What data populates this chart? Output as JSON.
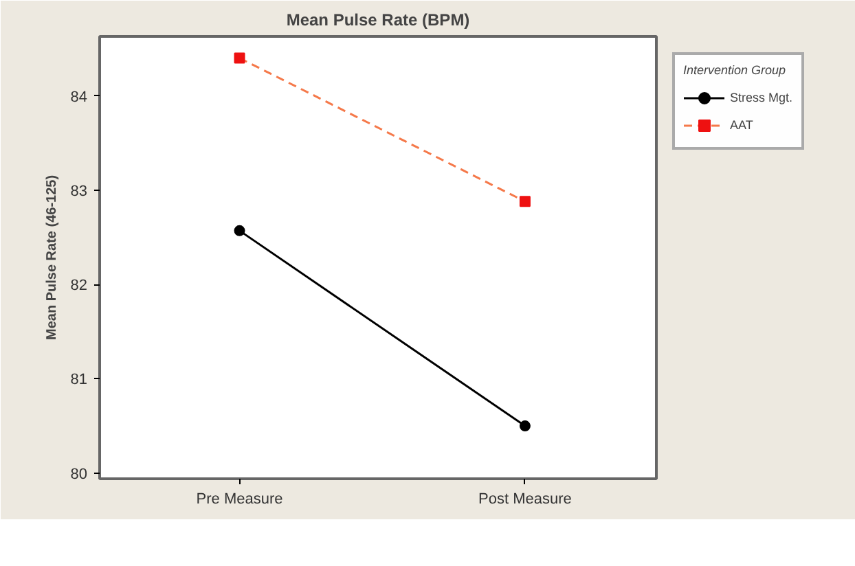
{
  "chart_data": {
    "type": "line",
    "title": "Mean Pulse Rate (BPM)",
    "ylabel": "Mean Pulse Rate (46-125)",
    "legend_title": "Intervention Group",
    "categories": [
      "Pre Measure",
      "Post Measure"
    ],
    "series": [
      {
        "name": "Stress Mgt.",
        "color": "#000000",
        "values": [
          82.57,
          80.5
        ],
        "marker": "circle",
        "line_style": "solid"
      },
      {
        "name": "AAT",
        "color": "#f5794a",
        "values": [
          84.4,
          82.88
        ],
        "marker": "square",
        "line_style": "dashed"
      }
    ],
    "ylim": [
      79.94,
      84.63
    ],
    "yticks": [
      80,
      81,
      82,
      83,
      84
    ],
    "legend": "right"
  }
}
